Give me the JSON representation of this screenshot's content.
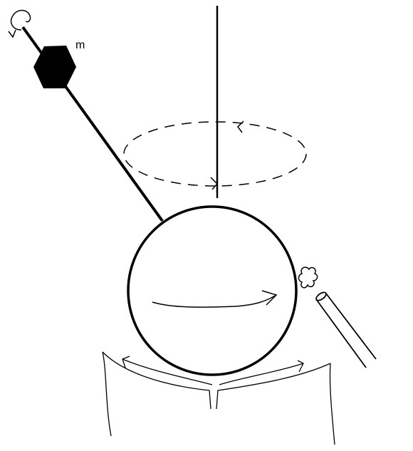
{
  "labels": {
    "mass": "m"
  },
  "colors": {
    "ink": "#000000",
    "background": "#ffffff"
  },
  "icons": {
    "rotation": "curved-arrow-icon",
    "nozzle": "nozzle-icon",
    "spray": "spray-puff-icon"
  }
}
